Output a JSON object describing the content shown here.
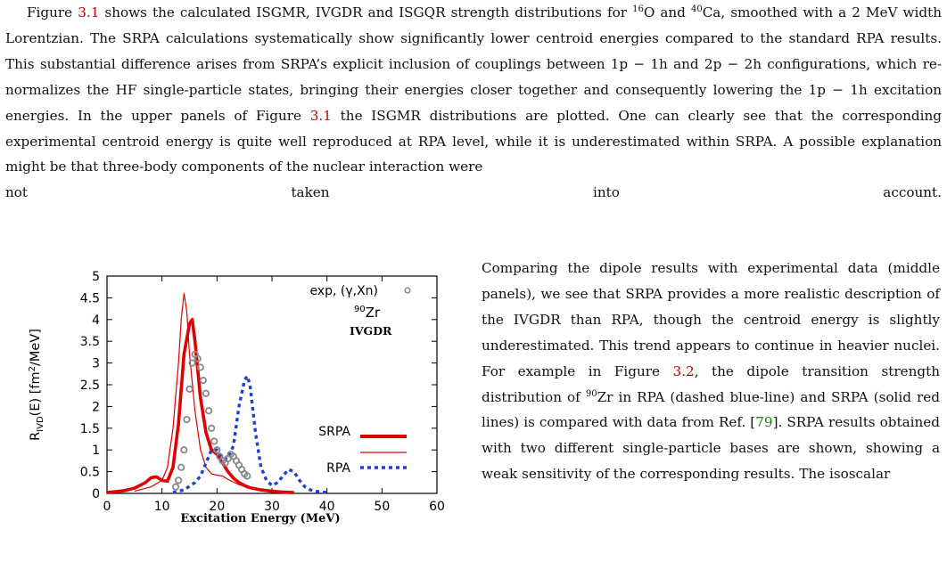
{
  "paragraph1": {
    "s1a": "Figure ",
    "ref1": "3.1",
    "s1b": " shows the calculated ISGMR, IVGDR and ISGQR strength distributions for ",
    "sup16": "16",
    "o": "O and ",
    "sup40": "40",
    "ca": "Ca, smoothed with a 2 MeV width Lorentzian. The SRPA calculations systematically show significantly lower centroid energies compared to the standard RPA results. This substantial difference arises from SRPA’s explicit inclusion of couplings between 1p − 1h and 2p − 2h configurations, which re-normalizes the HF single-particle states, bringing their energies closer together and consequently lowering the 1p − 1h excitation energies. In the upper panels of Figure ",
    "ref2": "3.1",
    "s2": " the ISGMR distributions are plotted. One can clearly see that the corresponding experimental centroid energy is quite well reproduced at RPA level, while it is underestimated within SRPA. A possible explanation might be that three-body components of the nuclear interaction were",
    "lastline": [
      "not",
      "taken",
      "into",
      "account."
    ]
  },
  "paragraph2": {
    "a": "Comparing the dipole results with experimental data (middle panels), we see that SRPA provides a more realistic description of the IVGDR than RPA, though the centroid energy is slightly underestimated. This trend appears to continue in heavier nuclei. For example in Figure ",
    "ref": "3.2",
    "b": ", the dipole transition strength distribution of ",
    "sup90": "90",
    "c": "Zr in RPA (dashed blue-line) and SRPA (solid red lines) is compared with data from Ref. [",
    "cite": "79",
    "d": "]. SRPA results obtained with two different single-particle bases are shown, showing a weak sensitivity of the corresponding results. The isoscalar"
  },
  "figure": {
    "ylabel_main": "R",
    "ylabel_sub": "IVD",
    "ylabel_rest": "(E) [fm",
    "ylabel_sup": "2",
    "ylabel_end": "/MeV]",
    "xlabel": "Excitation Energy (MeV)",
    "legend_exp": "exp, (γ,Xn)",
    "nucleus_sup": "90",
    "nucleus": "Zr",
    "mode": "IVGDR",
    "legend_srpa": "SRPA",
    "legend_rpa": "RPA",
    "colors": {
      "srpa": "#e00000",
      "rpa": "#1f3fd6",
      "exp": "#888888"
    }
  },
  "chart_data": {
    "type": "line",
    "xlabel": "Excitation Energy (MeV)",
    "ylabel": "R_IVD(E) [fm^2/MeV]",
    "xlim": [
      0,
      60
    ],
    "ylim": [
      0,
      5
    ],
    "xticks": [
      0,
      10,
      20,
      30,
      40,
      50,
      60
    ],
    "yticks": [
      0,
      0.5,
      1,
      1.5,
      2,
      2.5,
      3,
      3.5,
      4,
      4.5,
      5
    ],
    "series": [
      {
        "name": "SRPA",
        "style": "solid-thick",
        "color": "#e00000",
        "x": [
          0,
          3,
          5,
          7,
          8,
          9,
          10,
          11,
          12,
          13,
          14,
          15,
          15.5,
          16,
          17,
          18,
          19,
          20,
          21,
          22,
          23,
          24,
          25,
          26,
          28,
          30,
          32,
          34
        ],
        "y": [
          0.02,
          0.06,
          0.12,
          0.25,
          0.36,
          0.38,
          0.3,
          0.28,
          0.6,
          1.6,
          3.2,
          3.9,
          4.0,
          3.5,
          2.2,
          1.4,
          1.0,
          0.9,
          0.7,
          0.5,
          0.35,
          0.25,
          0.18,
          0.13,
          0.08,
          0.05,
          0.03,
          0.02
        ]
      },
      {
        "name": "SRPA",
        "style": "solid-thin",
        "color": "#e00000",
        "x": [
          5,
          8,
          10,
          11,
          12,
          13,
          13.5,
          14,
          14.5,
          15,
          16,
          17,
          18,
          19,
          20,
          21,
          22,
          24,
          26,
          28,
          30,
          32,
          34
        ],
        "y": [
          0.05,
          0.15,
          0.3,
          0.6,
          1.5,
          3.0,
          4.0,
          4.6,
          4.2,
          3.2,
          1.9,
          1.0,
          0.6,
          0.45,
          0.42,
          0.4,
          0.32,
          0.2,
          0.12,
          0.07,
          0.05,
          0.03,
          0.02
        ]
      },
      {
        "name": "RPA",
        "style": "dashed",
        "color": "#1f3fd6",
        "x": [
          12,
          14,
          16,
          17,
          18,
          19,
          20,
          21,
          22,
          23,
          24,
          25,
          25.5,
          26,
          27,
          28,
          29,
          30,
          31,
          32,
          33,
          34,
          35,
          36,
          37,
          38,
          39,
          40
        ],
        "y": [
          0.02,
          0.08,
          0.25,
          0.4,
          0.7,
          1.0,
          1.0,
          0.8,
          0.8,
          1.1,
          2.0,
          2.6,
          2.7,
          2.5,
          1.4,
          0.6,
          0.3,
          0.18,
          0.25,
          0.4,
          0.55,
          0.5,
          0.3,
          0.15,
          0.08,
          0.05,
          0.03,
          0.02
        ]
      },
      {
        "name": "exp, (γ,Xn)",
        "style": "markers",
        "color": "#888888",
        "x": [
          12.5,
          13,
          13.5,
          14,
          14.5,
          15,
          15.5,
          16,
          16.5,
          17,
          17.5,
          18,
          18.5,
          19,
          19.5,
          20,
          20.5,
          21,
          21.5,
          22,
          22.5,
          23,
          23.5,
          24,
          24.5,
          25,
          25.5
        ],
        "y": [
          0.15,
          0.3,
          0.6,
          1.0,
          1.7,
          2.4,
          3.0,
          3.2,
          3.1,
          2.9,
          2.6,
          2.3,
          1.9,
          1.5,
          1.2,
          1.0,
          0.85,
          0.75,
          0.7,
          0.8,
          0.9,
          0.85,
          0.75,
          0.65,
          0.55,
          0.45,
          0.4
        ]
      }
    ]
  }
}
